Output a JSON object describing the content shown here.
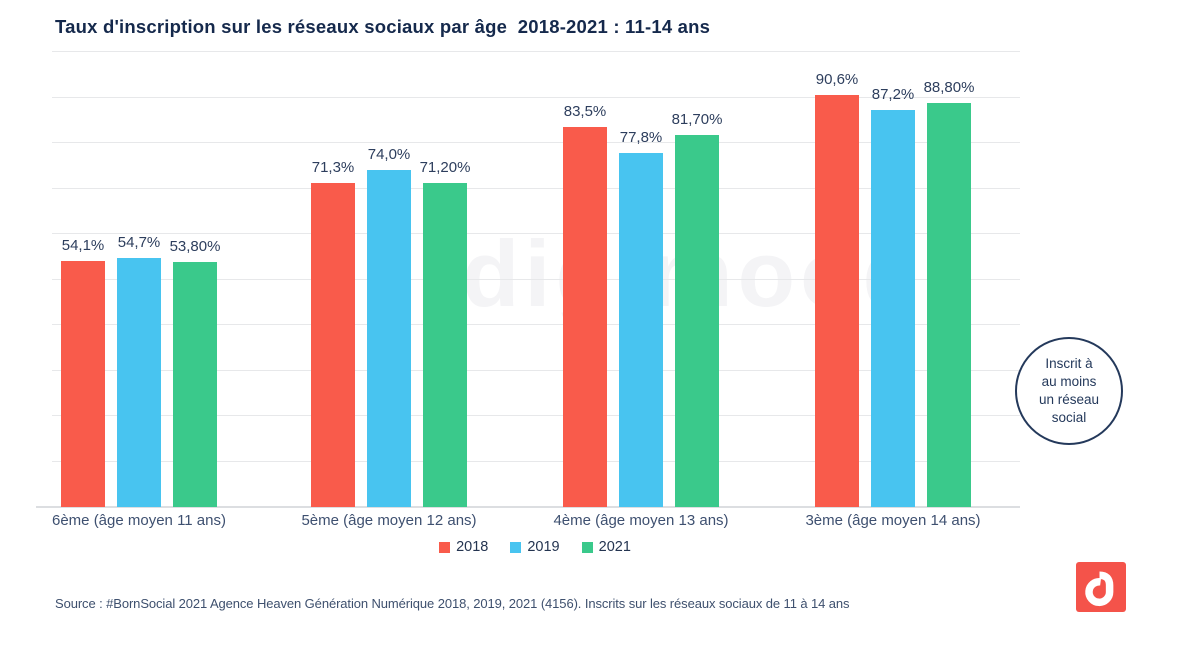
{
  "header": {
    "title": "Taux d'inscription sur les réseaux sociaux par âge  2018-2021 : 11-14 ans"
  },
  "watermark": {
    "text": "digimood"
  },
  "chart_data": {
    "type": "bar",
    "title": "Taux d'inscription sur les réseaux sociaux par âge 2018-2021 : 11-14 ans",
    "categories": [
      "6ème (âge moyen 11 ans)",
      "5ème (âge moyen 12 ans)",
      "4ème (âge moyen 13 ans)",
      "3ème (âge moyen 14 ans)"
    ],
    "series": [
      {
        "name": "2018",
        "color": "#F95B4B",
        "values": [
          54.1,
          71.3,
          83.5,
          90.6
        ],
        "value_labels": [
          "54,1%",
          "71,3%",
          "83,5%",
          "90,6%"
        ]
      },
      {
        "name": "2019",
        "color": "#48C4F0",
        "values": [
          54.7,
          74.0,
          77.8,
          87.2
        ],
        "value_labels": [
          "54,7%",
          "74,0%",
          "77,8%",
          "87,2%"
        ]
      },
      {
        "name": "2021",
        "color": "#3AC98B",
        "values": [
          53.8,
          71.2,
          81.7,
          88.8
        ],
        "value_labels": [
          "53,80%",
          "71,20%",
          "81,70%",
          "88,80%"
        ]
      }
    ],
    "xlabel": "",
    "ylabel": "",
    "ylim": [
      0,
      100
    ],
    "grid": true,
    "grid_step": 10,
    "legend_position": "bottom"
  },
  "annotation": {
    "lines": [
      "Inscrit à",
      "au moins",
      "un réseau",
      "social"
    ],
    "border_color": "#24395B"
  },
  "footer": {
    "source": "Source : #BornSocial 2021 Agence Heaven Génération Numérique 2018, 2019, 2021 (4156). Inscrits sur les réseaux sociaux de 11 à 14 ans"
  },
  "logo": {
    "name": "digimood",
    "color": "#F4534A"
  }
}
